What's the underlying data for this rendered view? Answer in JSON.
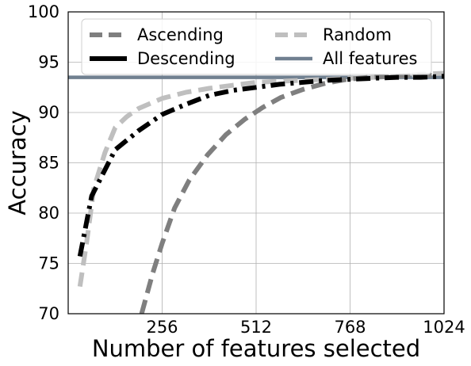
{
  "chart_data": {
    "type": "line",
    "title": "",
    "xlabel": "Number of features selected",
    "ylabel": "Accuracy",
    "xlim": [
      0,
      1024
    ],
    "ylim": [
      70,
      100
    ],
    "xticks": [
      256,
      512,
      768,
      1024
    ],
    "yticks": [
      70,
      75,
      80,
      85,
      90,
      95,
      100
    ],
    "grid": true,
    "legend": {
      "position": "top",
      "columns": 2
    },
    "series": [
      {
        "name": "Ascending",
        "color": "#7f7f7f",
        "style": "dashed",
        "x": [
          200,
          230,
          256,
          290,
          330,
          380,
          430,
          480,
          530,
          580,
          640,
          700,
          760,
          820,
          880,
          940,
          1000
        ],
        "y": [
          70.0,
          74.0,
          77.0,
          80.5,
          83.3,
          85.8,
          87.8,
          89.3,
          90.5,
          91.5,
          92.3,
          92.9,
          93.3,
          93.5,
          93.6,
          93.7,
          93.7
        ]
      },
      {
        "name": "Descending",
        "color": "#000000",
        "style": "dashdot",
        "x": [
          32,
          64,
          128,
          192,
          256,
          320,
          384,
          448,
          512,
          576,
          640,
          704,
          768,
          832,
          896,
          960,
          1024
        ],
        "y": [
          75.7,
          81.7,
          86.3,
          88.2,
          89.8,
          90.8,
          91.7,
          92.2,
          92.5,
          92.8,
          93.0,
          93.2,
          93.3,
          93.4,
          93.5,
          93.5,
          93.6
        ]
      },
      {
        "name": "Random",
        "color": "#bfbfbf",
        "style": "dashed",
        "x": [
          32,
          50,
          70,
          100,
          128,
          160,
          192,
          256,
          320,
          384,
          448,
          512,
          576,
          640,
          704,
          768,
          832,
          896,
          960,
          1024
        ],
        "y": [
          72.7,
          77.0,
          82.5,
          86.0,
          88.5,
          89.6,
          90.4,
          91.4,
          92.0,
          92.4,
          92.7,
          93.0,
          93.1,
          93.2,
          93.3,
          93.4,
          93.5,
          93.6,
          93.8,
          93.9
        ]
      },
      {
        "name": "All features",
        "color": "#708090",
        "style": "solid",
        "x": [
          0,
          1024
        ],
        "y": [
          93.5,
          93.5
        ]
      }
    ]
  }
}
